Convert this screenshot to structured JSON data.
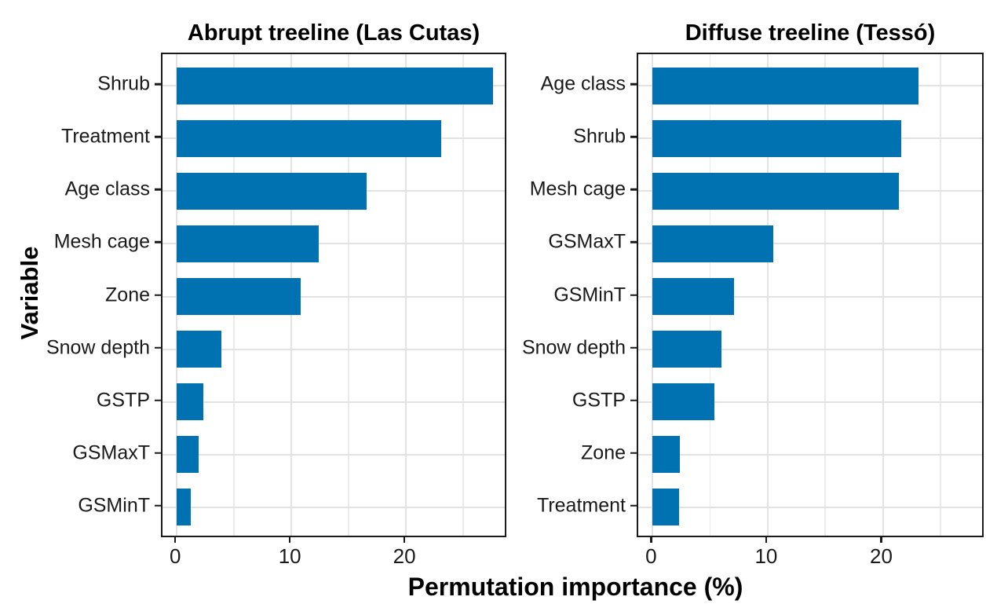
{
  "figure": {
    "xlabel": "Permutation importance (%)",
    "ylabel": "Variable"
  },
  "chart_data": [
    {
      "type": "bar",
      "orientation": "horizontal",
      "title": "Abrupt treeline (Las Cutas)",
      "categories": [
        "Shrub",
        "Treatment",
        "Age class",
        "Mesh cage",
        "Zone",
        "Snow depth",
        "GSTP",
        "GSMaxT",
        "GSMinT"
      ],
      "values": [
        27.6,
        23.1,
        16.6,
        12.4,
        10.8,
        3.9,
        2.3,
        1.9,
        1.2
      ],
      "xlim": [
        -1.25,
        28.9
      ],
      "xticks": [
        0,
        10,
        20
      ],
      "minor_xticks": [
        5,
        15,
        25
      ],
      "grid": true,
      "legend": false,
      "bar_color": "#0072B2"
    },
    {
      "type": "bar",
      "orientation": "horizontal",
      "title": "Diffuse treeline (Tessó)",
      "categories": [
        "Age class",
        "Shrub",
        "Mesh cage",
        "GSMaxT",
        "GSMinT",
        "Snow depth",
        "GSTP",
        "Zone",
        "Treatment"
      ],
      "values": [
        23.1,
        21.6,
        21.4,
        10.5,
        7.1,
        6.0,
        5.4,
        2.4,
        2.3
      ],
      "xlim": [
        -1.25,
        28.9
      ],
      "xticks": [
        0,
        10,
        20
      ],
      "minor_xticks": [
        5,
        15,
        25
      ],
      "grid": true,
      "legend": false,
      "bar_color": "#0072B2"
    }
  ],
  "style": {
    "bar_color": "#0072B2",
    "major_grid_color": "#E2E2E2",
    "minor_grid_color": "#EAEAEA",
    "panel_border_color": "#1A1A1A",
    "text_color": "#000000",
    "background": "#FFFFFF"
  }
}
